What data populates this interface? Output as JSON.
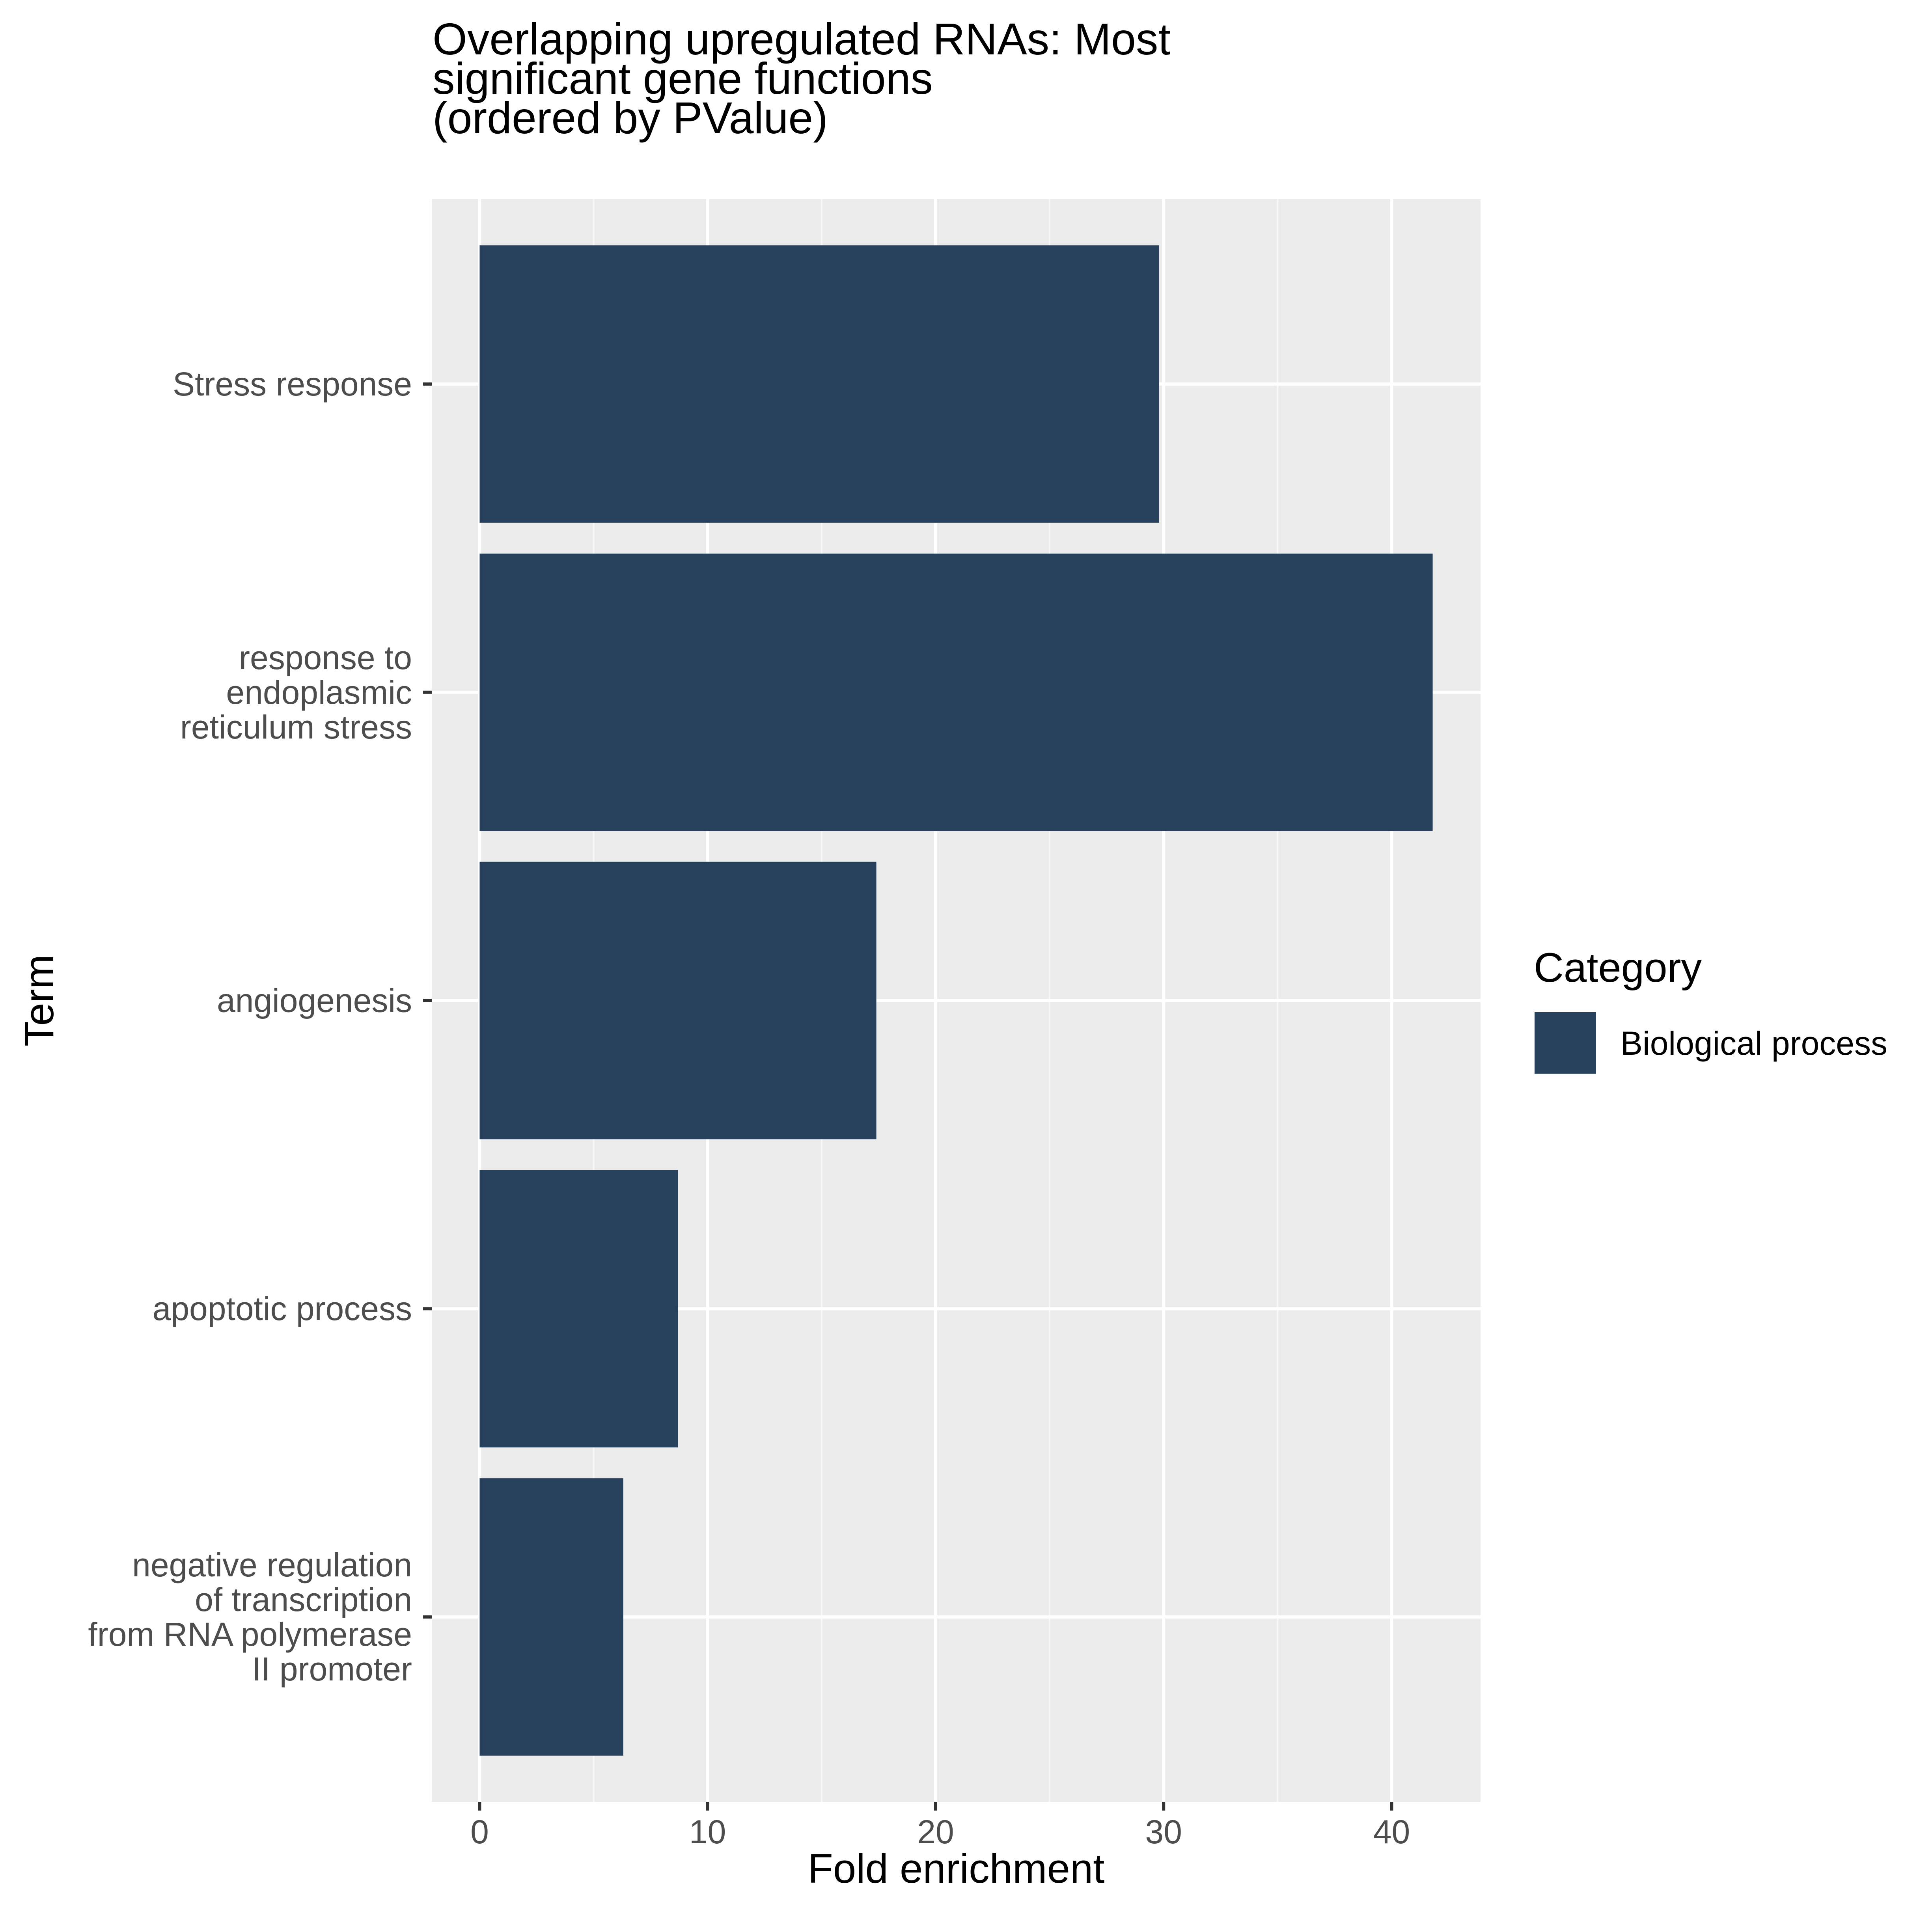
{
  "chart_data": {
    "type": "bar",
    "orientation": "horizontal",
    "title_lines": [
      "Overlapping upregulated RNAs: Most",
      "significant gene functions",
      "(ordered by PValue)"
    ],
    "xlabel": "Fold enrichment",
    "ylabel": "Term",
    "xlim": [
      -2.1,
      43.9
    ],
    "x_ticks": [
      0,
      10,
      20,
      30,
      40
    ],
    "grid": true,
    "categories": [
      [
        "Stress response"
      ],
      [
        "response to",
        "endoplasmic",
        "reticulum stress"
      ],
      [
        "angiogenesis"
      ],
      [
        "apoptotic process"
      ],
      [
        "negative regulation",
        "of transcription",
        "from RNA polymerase",
        "II promoter"
      ]
    ],
    "series": [
      {
        "name": "Biological process",
        "values": [
          29.8,
          41.8,
          17.4,
          8.7,
          6.3
        ]
      }
    ],
    "legend": {
      "title": "Category",
      "position": "right"
    },
    "colors": {
      "bar": "#27415C",
      "panel": "#EBEBEB",
      "grid_major": "#FFFFFF",
      "grid_minor": "#F7F7F7",
      "tick_text": "#4D4D4D",
      "tick_line": "#333333"
    }
  }
}
